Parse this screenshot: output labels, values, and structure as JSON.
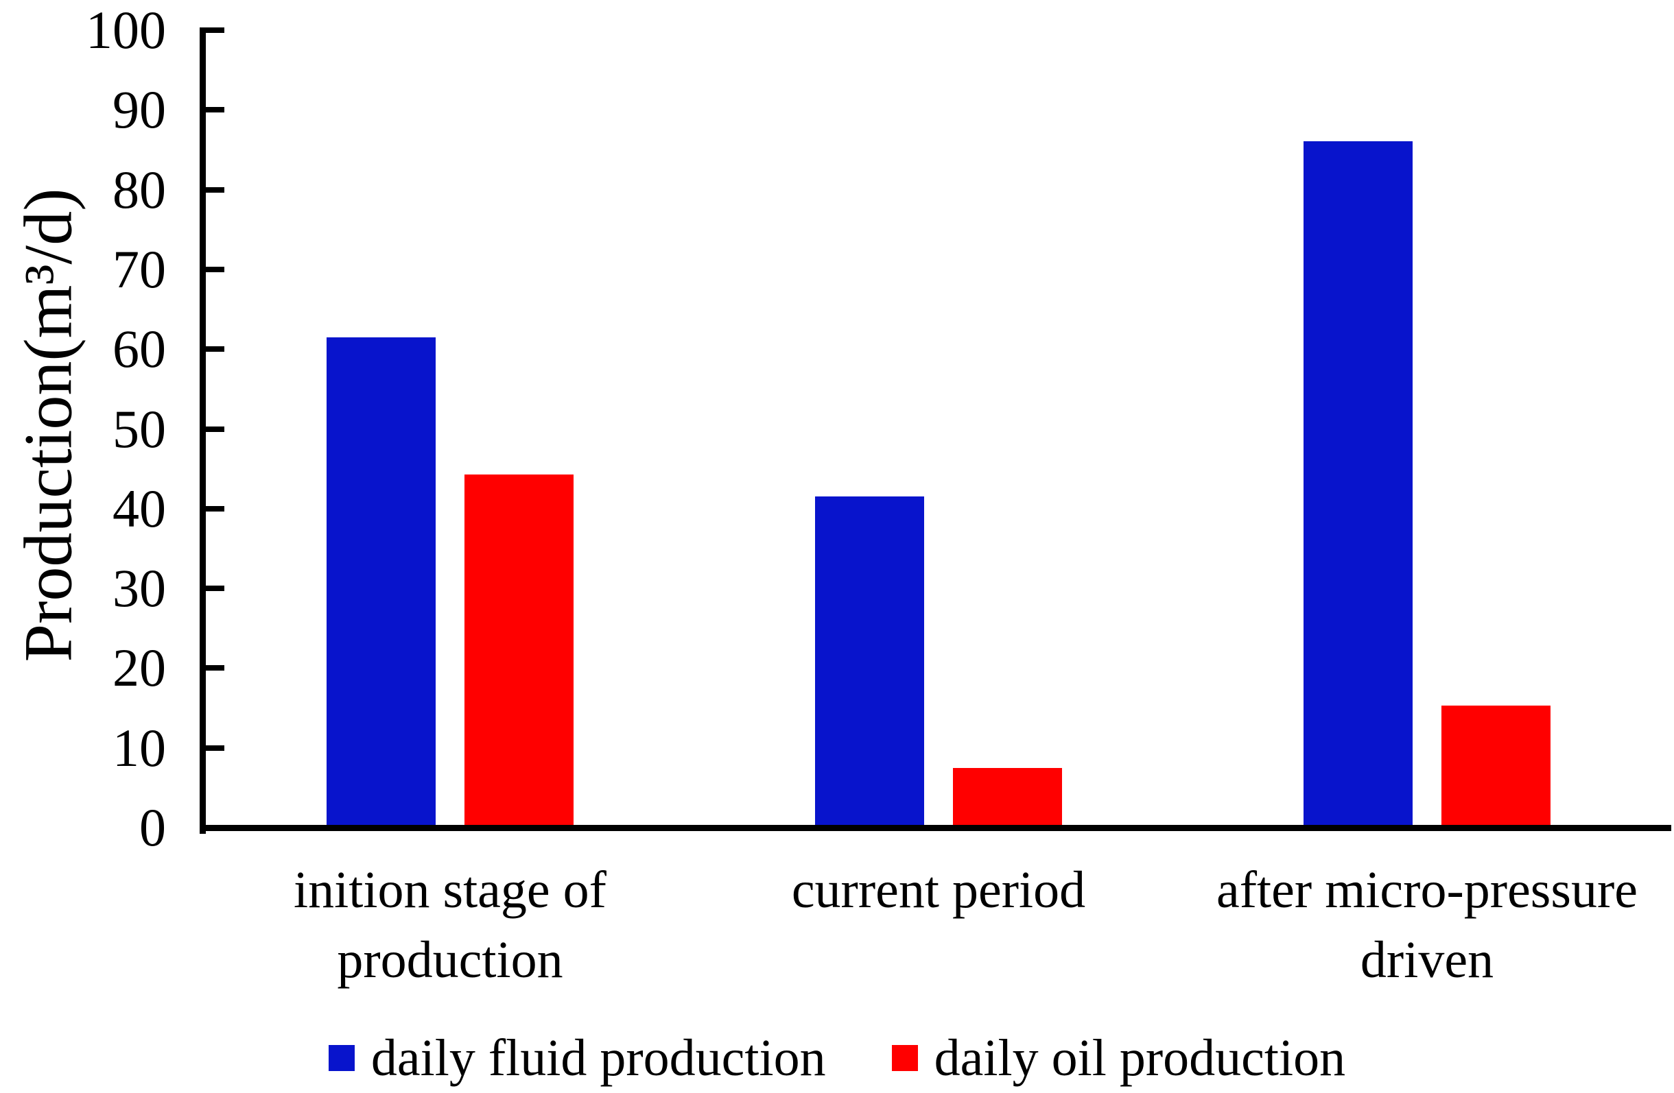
{
  "chart_data": {
    "type": "bar",
    "title": "",
    "ylabel": "Production(m³/d)",
    "ylim": [
      0,
      100
    ],
    "ytick_step": 10,
    "grid": false,
    "legend_position": "bottom",
    "categories": [
      "inition stage of\nproduction",
      "current period",
      "after micro-pressure\ndriven"
    ],
    "series": [
      {
        "name": "daily fluid production",
        "color": "#0814CC",
        "values": [
          61.5,
          41.5,
          86.1
        ]
      },
      {
        "name": "daily oil production",
        "color": "#FF0000",
        "values": [
          44.3,
          7.5,
          15.3
        ]
      }
    ],
    "axis_color": "#000000",
    "text_color": "#000000"
  }
}
